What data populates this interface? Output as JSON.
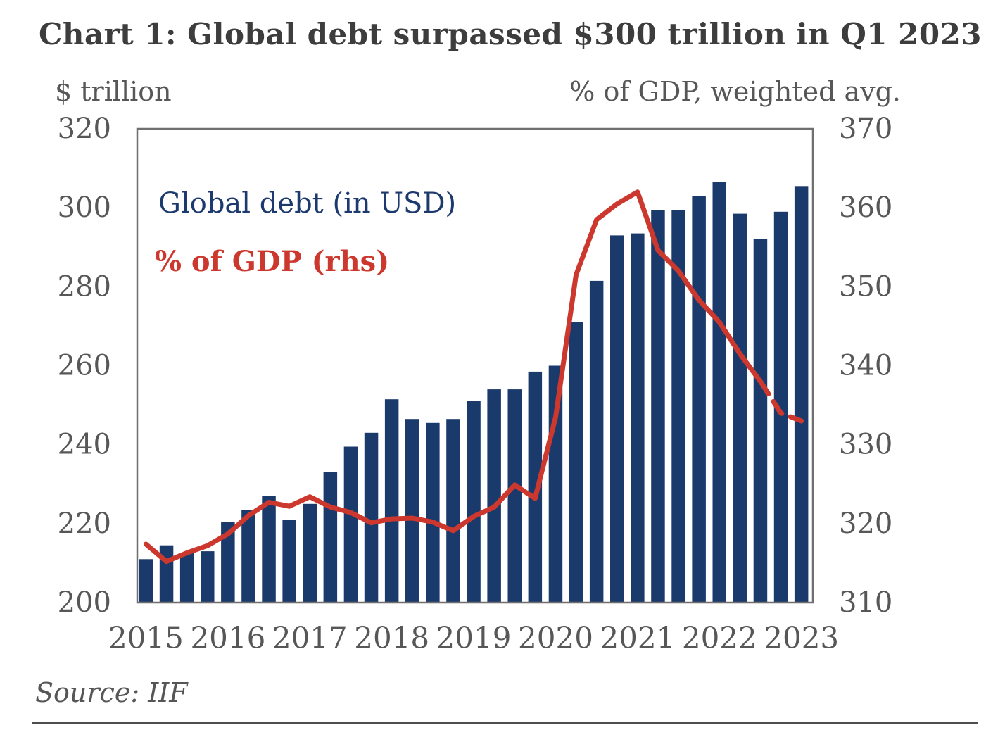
{
  "title": "Chart 1: Global debt surpassed $300 trillion in Q1 2023",
  "source": "Source: IIF",
  "legend": {
    "debt_label": "Global debt (in USD)",
    "gdp_label": "% of GDP (rhs)"
  },
  "colors": {
    "bar_navy": "#1b3a6c",
    "line_red": "#cc382e",
    "axis_border": "#6f6f6f",
    "tick_text": "#575757",
    "title_text": "#3d3d3d"
  },
  "chart_data": {
    "type": "bar",
    "title": "Chart 1: Global debt surpassed $300 trillion in Q1 2023",
    "categories": [
      "2015 Q1",
      "2015 Q2",
      "2015 Q3",
      "2015 Q4",
      "2016 Q1",
      "2016 Q2",
      "2016 Q3",
      "2016 Q4",
      "2017 Q1",
      "2017 Q2",
      "2017 Q3",
      "2017 Q4",
      "2018 Q1",
      "2018 Q2",
      "2018 Q3",
      "2018 Q4",
      "2019 Q1",
      "2019 Q2",
      "2019 Q3",
      "2019 Q4",
      "2020 Q1",
      "2020 Q2",
      "2020 Q3",
      "2020 Q4",
      "2021 Q1",
      "2021 Q2",
      "2021 Q3",
      "2021 Q4",
      "2022 Q1",
      "2022 Q2",
      "2022 Q3",
      "2022 Q4",
      "2023 Q1"
    ],
    "series": [
      {
        "name": "Global debt (in USD)",
        "type": "bar",
        "axis": "left",
        "units": "$ trillion",
        "values": [
          211,
          214.5,
          212.5,
          213,
          220.5,
          223.5,
          227,
          221,
          225,
          233,
          239.5,
          243,
          251.5,
          246.5,
          245.5,
          246.5,
          251,
          254,
          254,
          258.5,
          260,
          271,
          281.5,
          293,
          293.5,
          299.5,
          299.5,
          303,
          306.5,
          298.5,
          292,
          299,
          305.5
        ]
      },
      {
        "name": "% of GDP (rhs)",
        "type": "line",
        "axis": "right",
        "units": "% of GDP, weighted avg.",
        "values": [
          317.4,
          315.2,
          316.3,
          317.2,
          318.7,
          321,
          322.7,
          322.2,
          323.4,
          322.1,
          321.4,
          320.1,
          320.6,
          320.7,
          320.2,
          319.1,
          320.9,
          322.1,
          324.9,
          323.2,
          333.5,
          351.5,
          358.5,
          360.5,
          362,
          354.6,
          352,
          348.3,
          345.5,
          341.5,
          338,
          334,
          333
        ],
        "dashed_from_index": 30
      }
    ],
    "left_axis": {
      "label": "$ trillion",
      "min": 200,
      "max": 320,
      "ticks": [
        320,
        300,
        280,
        260,
        240,
        220,
        200
      ]
    },
    "right_axis": {
      "label": "% of GDP, weighted avg.",
      "min": 310,
      "max": 370,
      "ticks": [
        370,
        360,
        350,
        340,
        330,
        320,
        310
      ]
    },
    "x_tick_labels": [
      "2015",
      "2016",
      "2017",
      "2018",
      "2019",
      "2020",
      "2021",
      "2022",
      "2023"
    ],
    "grid": false,
    "legend_position": "inside-top-left"
  }
}
